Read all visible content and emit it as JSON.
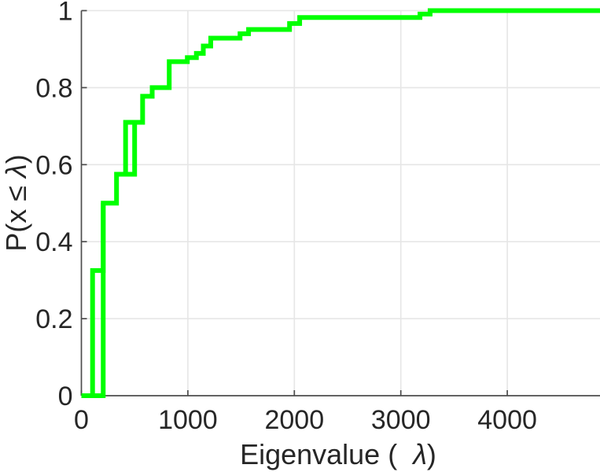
{
  "figure": {
    "background": "#ffffff"
  },
  "chart_data": {
    "type": "step-ecdf",
    "title": "",
    "xlabel": "Eigenvalue (  λ)",
    "ylabel": "P(x ≤ λ)",
    "xlim": [
      0,
      4870
    ],
    "ylim": [
      0,
      1
    ],
    "x_ticks": [
      {
        "value": 0,
        "label": "0"
      },
      {
        "value": 1000,
        "label": "1000"
      },
      {
        "value": 2000,
        "label": "2000"
      },
      {
        "value": 3000,
        "label": "3000"
      },
      {
        "value": 4000,
        "label": "4000"
      }
    ],
    "y_ticks": [
      {
        "value": 0,
        "label": "0"
      },
      {
        "value": 0.2,
        "label": "0.2"
      },
      {
        "value": 0.4,
        "label": "0.4"
      },
      {
        "value": 0.6,
        "label": "0.6"
      },
      {
        "value": 0.8,
        "label": "0.8"
      },
      {
        "value": 1,
        "label": "1"
      }
    ],
    "grid": true,
    "legend": "none",
    "series": [
      {
        "name": "ecdf-envelope",
        "steps": [
          [
            105,
            0.325
          ],
          [
            205,
            0.5
          ],
          [
            330,
            0.575
          ],
          [
            415,
            0.71
          ],
          [
            575,
            0.7775
          ],
          [
            665,
            0.8
          ],
          [
            825,
            0.8675
          ],
          [
            995,
            0.878
          ],
          [
            1080,
            0.889
          ],
          [
            1145,
            0.908
          ],
          [
            1215,
            0.9285
          ],
          [
            1490,
            0.94
          ],
          [
            1570,
            0.951
          ],
          [
            1955,
            0.9665
          ],
          [
            2050,
            0.982
          ],
          [
            3180,
            0.991
          ],
          [
            3275,
            1.0
          ]
        ],
        "start": [
          0,
          0
        ],
        "end_x": 4870
      },
      {
        "name": "ecdf-overlay-lower",
        "path": [
          [
            105,
            0
          ],
          [
            205,
            0
          ],
          [
            205,
            0.5
          ]
        ]
      },
      {
        "name": "ecdf-overlay-mid",
        "path": [
          [
            330,
            0.575
          ],
          [
            500,
            0.575
          ],
          [
            500,
            0.71
          ]
        ]
      }
    ],
    "colors": {
      "line": "#00ff00",
      "grid": "#e6e6e6",
      "axis": "#4d4d4d",
      "text": "#262626"
    },
    "line_width": 6
  }
}
